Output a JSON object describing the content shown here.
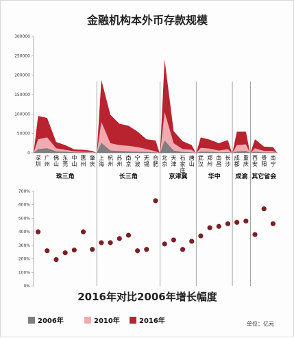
{
  "chart_data": [
    {
      "type": "area",
      "title": "金融机构本外币存款规模",
      "ylim": [
        0,
        300000
      ],
      "yticks": [
        0,
        50000,
        100000,
        150000,
        200000,
        250000,
        300000
      ],
      "ytick_labels": [
        "0",
        "50000",
        "100000",
        "150000",
        "200000",
        "250000",
        "300000"
      ],
      "categories": [
        "深圳",
        "广州",
        "佛山",
        "东莞",
        "中山",
        "惠州",
        "肇庆",
        "上海",
        "杭州",
        "苏州",
        "南京",
        "宁波",
        "无锡",
        "合肥",
        "北京",
        "天津",
        "石家庄",
        "唐山",
        "武汉",
        "郑州",
        "南昌",
        "长沙",
        "成都",
        "重庆",
        "西安",
        "贵阳",
        "南宁"
      ],
      "category_labels": [
        "深圳",
        "广州",
        "佛山",
        "东莞",
        "中山",
        "惠州",
        "肇庆",
        "上海",
        "杭州",
        "苏州",
        "南京",
        "宁波",
        "无锡",
        "合肥",
        "北京",
        "天津",
        "石家庄",
        "唐山",
        "武汉",
        "郑州",
        "南昌",
        "长沙",
        "成都",
        "重庆",
        "西安",
        "贵阳",
        "南宁"
      ],
      "groups": [
        {
          "name": "珠三角",
          "size": 7
        },
        {
          "name": "长三角",
          "size": 7
        },
        {
          "name": "京津冀",
          "size": 4
        },
        {
          "name": "华中",
          "size": 4
        },
        {
          "name": "成渝",
          "size": 2
        },
        {
          "name": "其它省会",
          "size": 3
        }
      ],
      "series": [
        {
          "name": "2006年",
          "color": "#7f7f7f",
          "values": [
            10000,
            12000,
            4000,
            3000,
            1000,
            1000,
            500,
            26000,
            6000,
            5000,
            4000,
            3000,
            2500,
            1000,
            32000,
            6000,
            2500,
            1000,
            3000,
            3000,
            1000,
            2000,
            4000,
            5000,
            3000,
            1000,
            1000
          ]
        },
        {
          "name": "2010年",
          "color": "#f0aab0",
          "values": [
            35000,
            40000,
            12000,
            8000,
            4000,
            3000,
            2000,
            80000,
            25000,
            20000,
            18000,
            15000,
            10000,
            4000,
            105000,
            25000,
            10000,
            8000,
            13000,
            11000,
            6000,
            10000,
            20000,
            22000,
            12000,
            5000,
            5000
          ]
        },
        {
          "name": "2016年",
          "color": "#b8232f",
          "values": [
            95000,
            90000,
            28000,
            20000,
            9000,
            8000,
            5000,
            188000,
            98000,
            75000,
            70000,
            55000,
            35000,
            32000,
            240000,
            56000,
            30000,
            20000,
            40000,
            34000,
            25000,
            33000,
            55000,
            55000,
            35000,
            16000,
            15000
          ]
        }
      ]
    },
    {
      "type": "scatter",
      "title": "2016年对比2006年增长幅度",
      "ylim": [
        0,
        700
      ],
      "yticks": [
        0,
        100,
        200,
        300,
        400,
        500,
        600,
        700
      ],
      "ytick_labels": [
        "0%",
        "100%",
        "200%",
        "300%",
        "400%",
        "500%",
        "600%",
        "700%"
      ],
      "color": "#7b1f24",
      "values": [
        400,
        260,
        195,
        245,
        265,
        400,
        270,
        320,
        320,
        350,
        375,
        260,
        270,
        630,
        310,
        340,
        270,
        330,
        370,
        430,
        440,
        460,
        470,
        480,
        380,
        570,
        460
      ]
    }
  ],
  "legend": {
    "items": [
      {
        "label": "2006年",
        "color": "#7f7f7f"
      },
      {
        "label": "2010年",
        "color": "#f0aab0"
      },
      {
        "label": "2016年",
        "color": "#b8232f"
      }
    ],
    "unit": "单位：亿元"
  }
}
